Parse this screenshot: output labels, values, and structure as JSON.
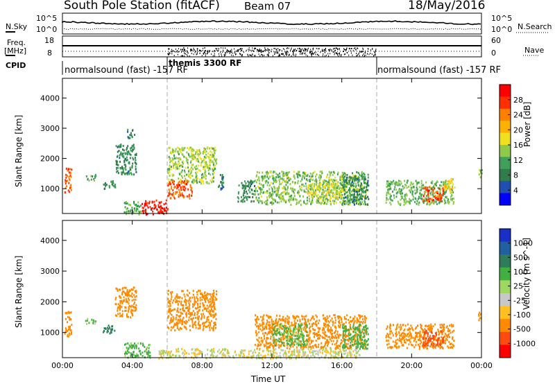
{
  "header": {
    "station": "South Pole Station (fitACF)",
    "beam": "Beam 07",
    "date": "18/May/2016"
  },
  "side_labels": {
    "nsky": "N.Sky",
    "freq_line1": "Freq.",
    "freq_line2": "[MHz]",
    "cpid": "CPID",
    "nsearch": "N.Search",
    "nave": "Nave",
    "nsky_ticks": [
      "10^5",
      "10^0"
    ],
    "nsearch_ticks": [
      "10^5",
      "10^0"
    ],
    "freq_ticks": [
      "18",
      "8"
    ],
    "nave_ticks": [
      "60",
      "0"
    ]
  },
  "cpid_segments": [
    {
      "text": "normalsound (fast) -157 RF",
      "start_hour": 0
    },
    {
      "text": "themis 3300 RF",
      "start_hour": 6
    },
    {
      "text": "normalsound (fast) -157 RF",
      "start_hour": 18
    }
  ],
  "x_axis": {
    "label": "Time UT",
    "range_hours": [
      0,
      24
    ],
    "tick_labels": [
      "00:00",
      "04:00",
      "08:00",
      "12:00",
      "16:00",
      "20:00",
      "00:00"
    ],
    "tick_hours": [
      0,
      4,
      8,
      12,
      16,
      20,
      24
    ]
  },
  "y_axis": {
    "label": "Slant Range [km]",
    "range_km": [
      180,
      4650
    ],
    "tick_values": [
      1000,
      2000,
      3000,
      4000
    ]
  },
  "colors": {
    "power": [
      "#0000ff",
      "#1f4fb0",
      "#2e7d4a",
      "#3fa05a",
      "#8fc94a",
      "#f0e020",
      "#ffb000",
      "#ff8000",
      "#ff3000",
      "#ff0000"
    ],
    "velocity": [
      "#ff0000",
      "#ff4a10",
      "#ff8a00",
      "#ffc020",
      "#c8c8c8",
      "#9fd860",
      "#40b040",
      "#2e7d5a",
      "#2060a0",
      "#1830c8"
    ]
  },
  "chart_data": [
    {
      "type": "heatmap",
      "panel": "power",
      "ylabel": "Slant Range [km]",
      "colorbar": {
        "label": "Power [dB]",
        "range": [
          0,
          32
        ],
        "ticks": [
          "4",
          "8",
          "12",
          "16",
          "20",
          "24",
          "28"
        ]
      },
      "regions": [
        {
          "t": [
            0.1,
            0.5
          ],
          "r": [
            900,
            1700
          ],
          "v": 26
        },
        {
          "t": [
            1.3,
            1.9
          ],
          "r": [
            1300,
            1500
          ],
          "v": 12
        },
        {
          "t": [
            2.3,
            3.0
          ],
          "r": [
            1000,
            1300
          ],
          "v": 10
        },
        {
          "t": [
            3.0,
            4.2
          ],
          "r": [
            1500,
            2500
          ],
          "v": 9
        },
        {
          "t": [
            3.7,
            4.1
          ],
          "r": [
            2700,
            3000
          ],
          "v": 8
        },
        {
          "t": [
            3.5,
            4.5
          ],
          "r": [
            180,
            600
          ],
          "v": 12
        },
        {
          "t": [
            4.5,
            6.0
          ],
          "r": [
            180,
            650
          ],
          "v": 29
        },
        {
          "t": [
            6.0,
            8.8
          ],
          "r": [
            1200,
            2400
          ],
          "v": 15
        },
        {
          "t": [
            6.0,
            7.4
          ],
          "r": [
            700,
            1300
          ],
          "v": 26
        },
        {
          "t": [
            8.8,
            9.2
          ],
          "r": [
            1000,
            1500
          ],
          "v": 8
        },
        {
          "t": [
            10.0,
            11.0
          ],
          "r": [
            600,
            1300
          ],
          "v": 9
        },
        {
          "t": [
            11.0,
            17.4
          ],
          "r": [
            500,
            1600
          ],
          "v": 14
        },
        {
          "t": [
            14.0,
            16.0
          ],
          "r": [
            700,
            1200
          ],
          "v": 17
        },
        {
          "t": [
            16.0,
            17.5
          ],
          "r": [
            500,
            1500
          ],
          "v": 9
        },
        {
          "t": [
            18.5,
            22.4
          ],
          "r": [
            500,
            1300
          ],
          "v": 13
        },
        {
          "t": [
            20.6,
            21.8
          ],
          "r": [
            600,
            1100
          ],
          "v": 27
        },
        {
          "t": [
            21.8,
            22.5
          ],
          "r": [
            900,
            1400
          ],
          "v": 18
        },
        {
          "t": [
            23.8,
            24.0
          ],
          "r": [
            1400,
            1700
          ],
          "v": 14
        }
      ]
    },
    {
      "type": "heatmap",
      "panel": "velocity",
      "ylabel": "Slant Range [km]",
      "colorbar": {
        "label": "Velocity [m s^-1]",
        "range": [
          -1500,
          1500
        ],
        "ticks": [
          "1000",
          "500",
          "100",
          "25",
          "-25",
          "-100",
          "-500",
          "-1000"
        ]
      },
      "regions": [
        {
          "t": [
            0.1,
            0.5
          ],
          "r": [
            900,
            1700
          ],
          "v": -400
        },
        {
          "t": [
            1.3,
            1.9
          ],
          "r": [
            1300,
            1500
          ],
          "v": 100
        },
        {
          "t": [
            2.3,
            3.0
          ],
          "r": [
            1000,
            1300
          ],
          "v": 600
        },
        {
          "t": [
            3.0,
            4.2
          ],
          "r": [
            1500,
            2500
          ],
          "v": -200
        },
        {
          "t": [
            3.5,
            5.0
          ],
          "r": [
            200,
            700
          ],
          "v": 150
        },
        {
          "t": [
            6.0,
            8.8
          ],
          "r": [
            1100,
            2400
          ],
          "v": -300
        },
        {
          "t": [
            11.0,
            17.4
          ],
          "r": [
            500,
            1600
          ],
          "v": -250
        },
        {
          "t": [
            12.0,
            14.0
          ],
          "r": [
            600,
            1300
          ],
          "v": 150
        },
        {
          "t": [
            16.0,
            17.5
          ],
          "r": [
            500,
            1300
          ],
          "v": 400
        },
        {
          "t": [
            18.5,
            22.4
          ],
          "r": [
            500,
            1300
          ],
          "v": -200
        },
        {
          "t": [
            20.6,
            21.8
          ],
          "r": [
            600,
            1100
          ],
          "v": -600
        },
        {
          "t": [
            23.8,
            24.0
          ],
          "r": [
            1400,
            1700
          ],
          "v": -200
        },
        {
          "t": [
            5.5,
            17.0
          ],
          "r": [
            180,
            500
          ],
          "v": 0
        }
      ]
    }
  ]
}
